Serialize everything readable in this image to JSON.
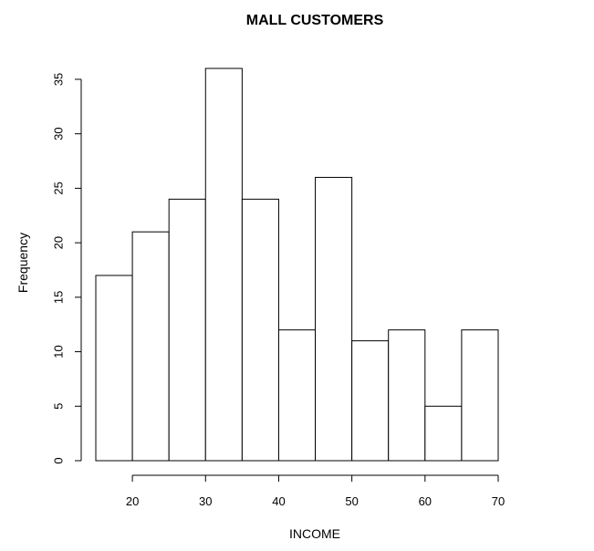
{
  "chart_data": {
    "type": "bar",
    "title": "MALL CUSTOMERS",
    "xlabel": "INCOME",
    "ylabel": "Frequency",
    "bins": [
      {
        "x0": 15,
        "x1": 20,
        "value": 17
      },
      {
        "x0": 20,
        "x1": 25,
        "value": 21
      },
      {
        "x0": 25,
        "x1": 30,
        "value": 24
      },
      {
        "x0": 30,
        "x1": 35,
        "value": 36
      },
      {
        "x0": 35,
        "x1": 40,
        "value": 24
      },
      {
        "x0": 40,
        "x1": 45,
        "value": 12
      },
      {
        "x0": 45,
        "x1": 50,
        "value": 26
      },
      {
        "x0": 50,
        "x1": 55,
        "value": 11
      },
      {
        "x0": 55,
        "x1": 60,
        "value": 12
      },
      {
        "x0": 60,
        "x1": 65,
        "value": 5
      },
      {
        "x0": 65,
        "x1": 70,
        "value": 12
      }
    ],
    "xlim": [
      15,
      70
    ],
    "ylim": [
      0,
      36
    ],
    "x_ticks": [
      20,
      30,
      40,
      50,
      60,
      70
    ],
    "y_ticks": [
      0,
      5,
      10,
      15,
      20,
      25,
      30,
      35
    ],
    "grid": false,
    "colors": {
      "bar_fill": "#ffffff",
      "bar_stroke": "#000000"
    }
  }
}
